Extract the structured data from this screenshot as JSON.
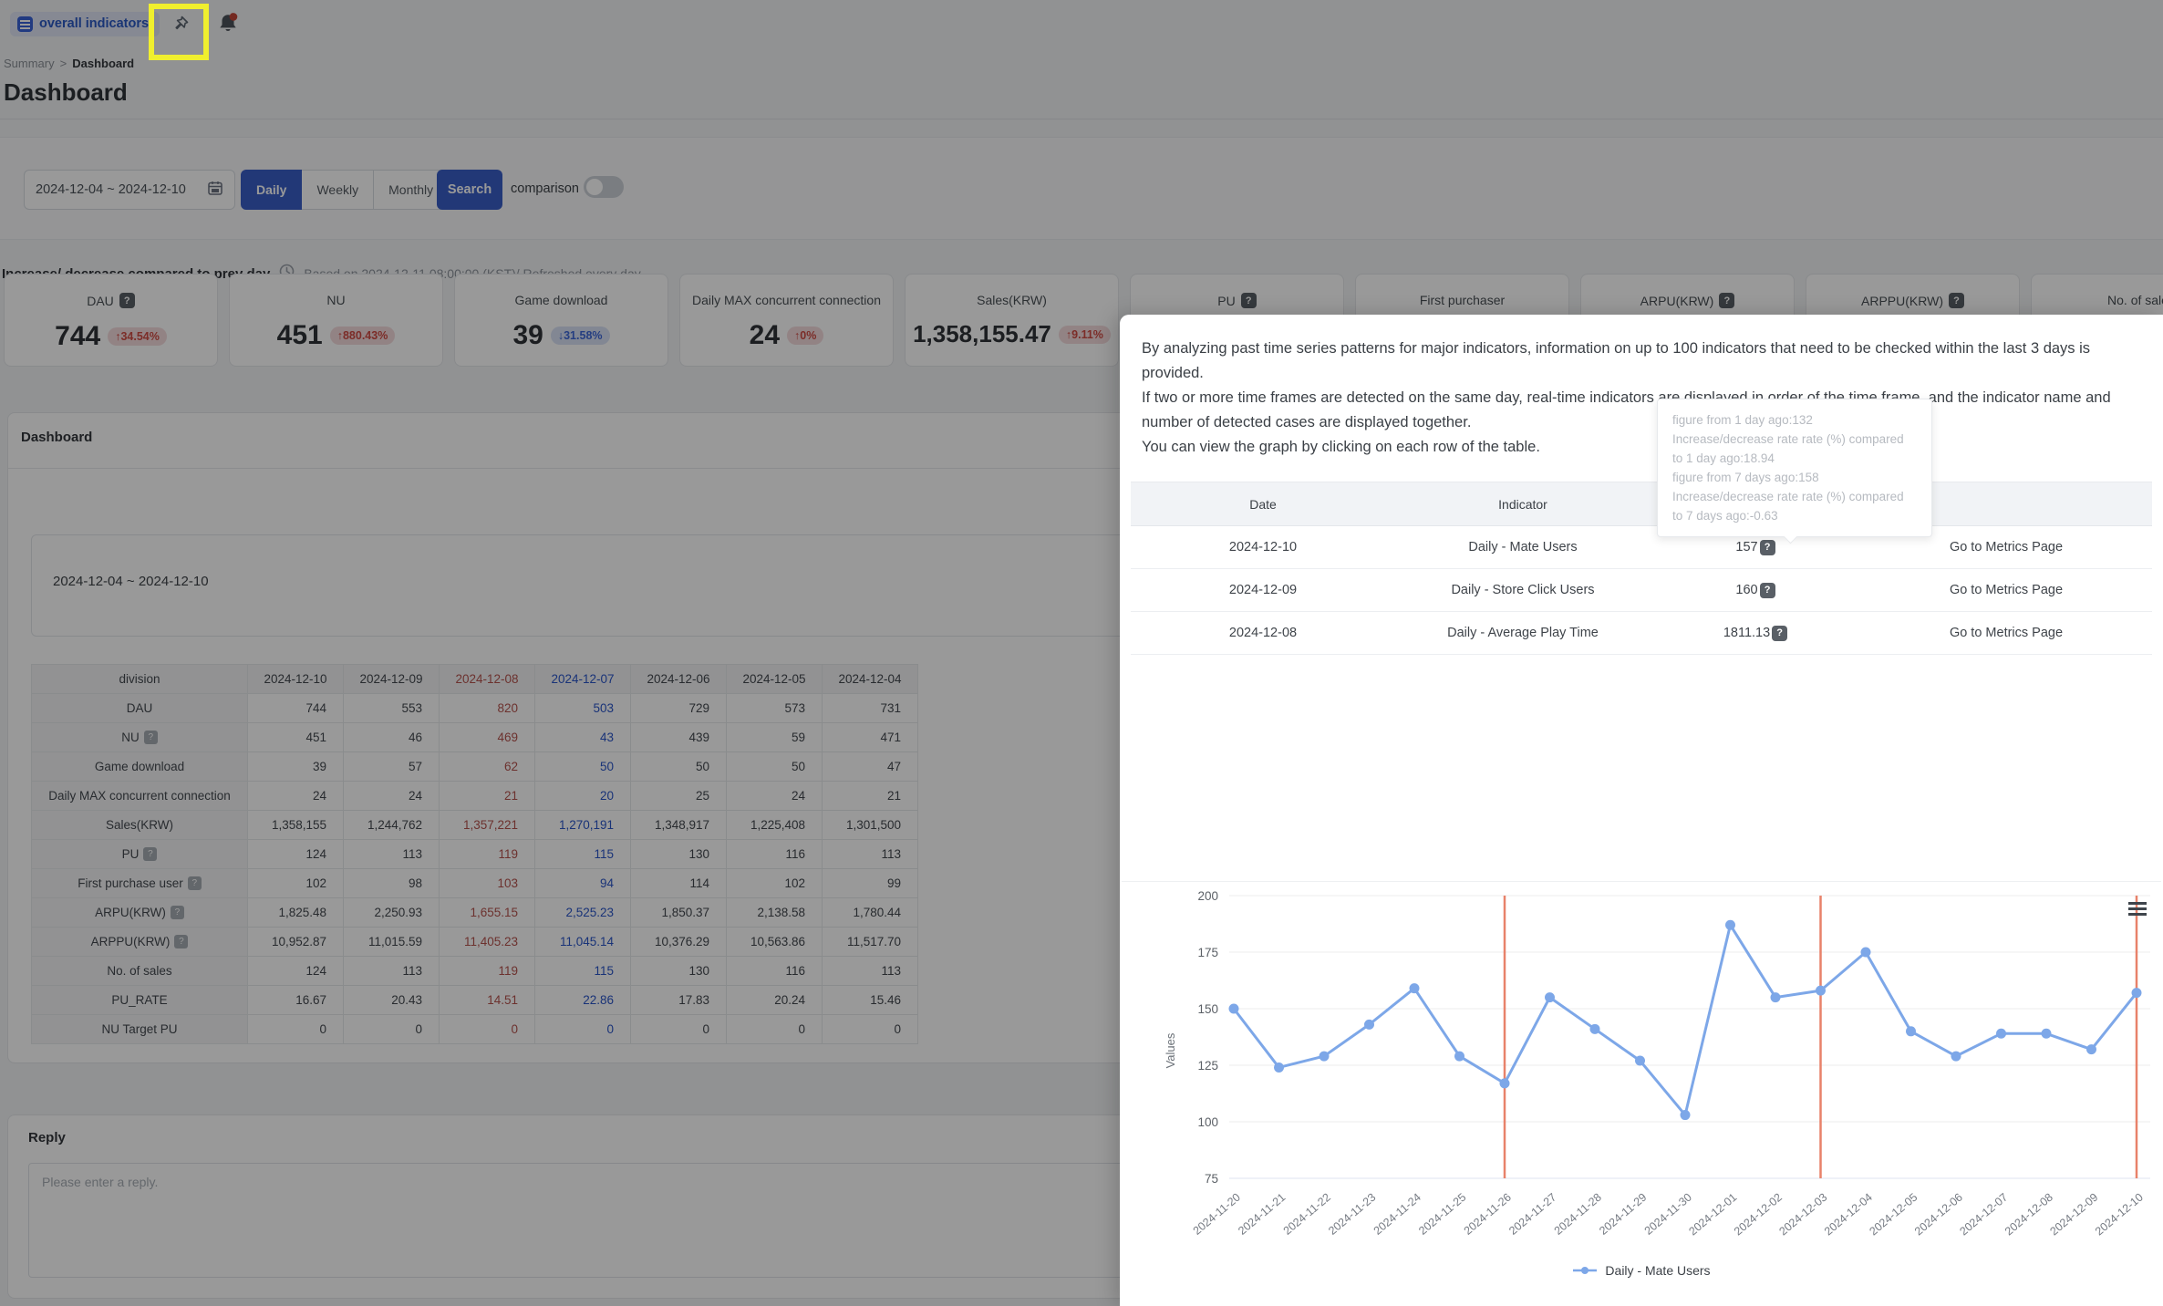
{
  "toolbar": {
    "tab_label": "overall indicators"
  },
  "breadcrumb": {
    "parent": "Summary",
    "separator": ">",
    "current": "Dashboard"
  },
  "page": {
    "title": "Dashboard"
  },
  "filter": {
    "date_range": "2024-12-04 ~ 2024-12-10",
    "granularity": [
      "Daily",
      "Weekly",
      "Monthly"
    ],
    "active_granularity": "Daily",
    "search_label": "Search",
    "comparison_label": "comparison",
    "comparison_on": false
  },
  "refresh_note": {
    "bold": "Increase/ decrease compared to prev day",
    "text": "Based on 2024-12-11 08:00:00 (KST)/ Refreshed every day"
  },
  "kpi": {
    "cards": [
      {
        "label": "DAU",
        "help": true,
        "value": "744",
        "delta": "34.54%",
        "direction": "up"
      },
      {
        "label": "NU",
        "help": false,
        "value": "451",
        "delta": "880.43%",
        "direction": "up"
      },
      {
        "label": "Game download",
        "help": false,
        "value": "39",
        "delta": "31.58%",
        "direction": "down"
      },
      {
        "label": "Daily MAX concurrent connection",
        "help": false,
        "value": "24",
        "delta": "0%",
        "direction": "up"
      },
      {
        "label": "Sales(KRW)",
        "help": false,
        "value": "1,358,155.47",
        "delta": "9.11%",
        "direction": "up"
      },
      {
        "label": "PU",
        "help": true
      },
      {
        "label": "First purchaser",
        "help": false
      },
      {
        "label": "ARPU(KRW)",
        "help": true
      },
      {
        "label": "ARPPU(KRW)",
        "help": true
      },
      {
        "label": "No. of sale",
        "help": false
      }
    ]
  },
  "main_section": {
    "title": "Dashboard",
    "period": "2024-12-04 ~ 2024-12-10",
    "table": {
      "columns": [
        "division",
        "2024-12-10",
        "2024-12-09",
        "2024-12-08",
        "2024-12-07",
        "2024-12-06",
        "2024-12-05",
        "2024-12-04"
      ],
      "highlight": {
        "red": "2024-12-08",
        "blue": "2024-12-07"
      },
      "rows": [
        {
          "label": "DAU",
          "help": false,
          "values": [
            "744",
            "553",
            "820",
            "503",
            "729",
            "573",
            "731"
          ]
        },
        {
          "label": "NU",
          "help": true,
          "values": [
            "451",
            "46",
            "469",
            "43",
            "439",
            "59",
            "471"
          ]
        },
        {
          "label": "Game download",
          "help": false,
          "values": [
            "39",
            "57",
            "62",
            "50",
            "50",
            "50",
            "47"
          ]
        },
        {
          "label": "Daily MAX concurrent connection",
          "help": false,
          "values": [
            "24",
            "24",
            "21",
            "20",
            "25",
            "24",
            "21"
          ]
        },
        {
          "label": "Sales(KRW)",
          "help": false,
          "values": [
            "1,358,155",
            "1,244,762",
            "1,357,221",
            "1,270,191",
            "1,348,917",
            "1,225,408",
            "1,301,500"
          ]
        },
        {
          "label": "PU",
          "help": true,
          "values": [
            "124",
            "113",
            "119",
            "115",
            "130",
            "116",
            "113"
          ]
        },
        {
          "label": "First purchase user",
          "help": true,
          "values": [
            "102",
            "98",
            "103",
            "94",
            "114",
            "102",
            "99"
          ]
        },
        {
          "label": "ARPU(KRW)",
          "help": true,
          "values": [
            "1,825.48",
            "2,250.93",
            "1,655.15",
            "2,525.23",
            "1,850.37",
            "2,138.58",
            "1,780.44"
          ]
        },
        {
          "label": "ARPPU(KRW)",
          "help": true,
          "values": [
            "10,952.87",
            "11,015.59",
            "11,405.23",
            "11,045.14",
            "10,376.29",
            "10,563.86",
            "11,517.70"
          ]
        },
        {
          "label": "No. of sales",
          "help": false,
          "values": [
            "124",
            "113",
            "119",
            "115",
            "130",
            "116",
            "113"
          ]
        },
        {
          "label": "PU_RATE",
          "help": false,
          "values": [
            "16.67",
            "20.43",
            "14.51",
            "22.86",
            "17.83",
            "20.24",
            "15.46"
          ]
        },
        {
          "label": "NU Target PU",
          "help": false,
          "values": [
            "0",
            "0",
            "0",
            "0",
            "0",
            "0",
            "0"
          ]
        }
      ]
    }
  },
  "reply": {
    "title": "Reply",
    "placeholder": "Please enter a reply."
  },
  "modal": {
    "description": [
      "By analyzing past time series patterns for major indicators, information on up to 100 indicators that need to be checked within the last 3 days is provided.",
      "If two or more time frames are detected on the same day, real-time indicators are displayed in order of the time frame, and the indicator name and number of detected cases are displayed together.",
      "You can view the graph by clicking on each row of the table."
    ],
    "tooltip_lines": [
      "figure from 1 day ago:132",
      "Increase/decrease rate rate (%) compared to 1 day ago:18.94",
      "figure from 7 days ago:158",
      "Increase/decrease rate rate (%) compared to 7 days ago:-0.63"
    ],
    "table": {
      "headers": [
        "Date",
        "Indicator",
        "",
        ""
      ],
      "rows": [
        {
          "date": "2024-12-10",
          "indicator": "Daily - Mate Users",
          "value": "157",
          "action": "Go to Metrics Page"
        },
        {
          "date": "2024-12-09",
          "indicator": "Daily - Store Click Users",
          "value": "160",
          "action": "Go to Metrics Page"
        },
        {
          "date": "2024-12-08",
          "indicator": "Daily - Average Play Time",
          "value": "1811.13",
          "action": "Go to Metrics Page"
        }
      ]
    }
  },
  "chart_data": {
    "type": "line",
    "x": [
      "2024-11-20",
      "2024-11-21",
      "2024-11-22",
      "2024-11-23",
      "2024-11-24",
      "2024-11-25",
      "2024-11-26",
      "2024-11-27",
      "2024-11-28",
      "2024-11-29",
      "2024-11-30",
      "2024-12-01",
      "2024-12-02",
      "2024-12-03",
      "2024-12-04",
      "2024-12-05",
      "2024-12-06",
      "2024-12-07",
      "2024-12-08",
      "2024-12-09",
      "2024-12-10"
    ],
    "series": [
      {
        "name": "Daily - Mate Users",
        "values": [
          150,
          124,
          129,
          143,
          159,
          129,
          117,
          155,
          141,
          127,
          103,
          187,
          155,
          158,
          175,
          140,
          129,
          139,
          139,
          132,
          157
        ]
      }
    ],
    "ylabel": "Values",
    "ylim": [
      75,
      200
    ],
    "yticks": [
      75,
      100,
      125,
      150,
      175,
      200
    ],
    "grid": true,
    "legend_position": "bottom",
    "red_vline_dates": [
      "2024-11-26",
      "2024-12-03",
      "2024-12-10"
    ],
    "colors": {
      "line": "#7da7e8",
      "marker": "#7da7e8",
      "vline": "#e8826a"
    }
  }
}
